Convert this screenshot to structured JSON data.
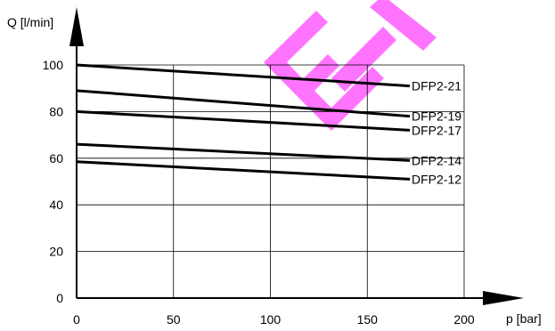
{
  "chart_data": {
    "type": "line",
    "xlabel": "p [bar]",
    "ylabel": "Q [l/min]",
    "xlim": [
      0,
      200
    ],
    "ylim": [
      0,
      100
    ],
    "x_ticks": [
      0,
      50,
      100,
      150,
      200
    ],
    "y_ticks": [
      0,
      20,
      40,
      60,
      80,
      100
    ],
    "grid": true,
    "series": [
      {
        "name": "DFP2-21",
        "x": [
          0,
          172
        ],
        "y": [
          100,
          91
        ]
      },
      {
        "name": "DFP2-19",
        "x": [
          0,
          172
        ],
        "y": [
          89,
          78
        ]
      },
      {
        "name": "DFP2-17",
        "x": [
          0,
          172
        ],
        "y": [
          80,
          72
        ]
      },
      {
        "name": "DFP2-14",
        "x": [
          0,
          172
        ],
        "y": [
          66,
          59
        ]
      },
      {
        "name": "DFP2-12",
        "x": [
          0,
          172
        ],
        "y": [
          58.5,
          51
        ]
      }
    ],
    "watermark": {
      "text": "E",
      "color": "#ff66ff"
    }
  }
}
